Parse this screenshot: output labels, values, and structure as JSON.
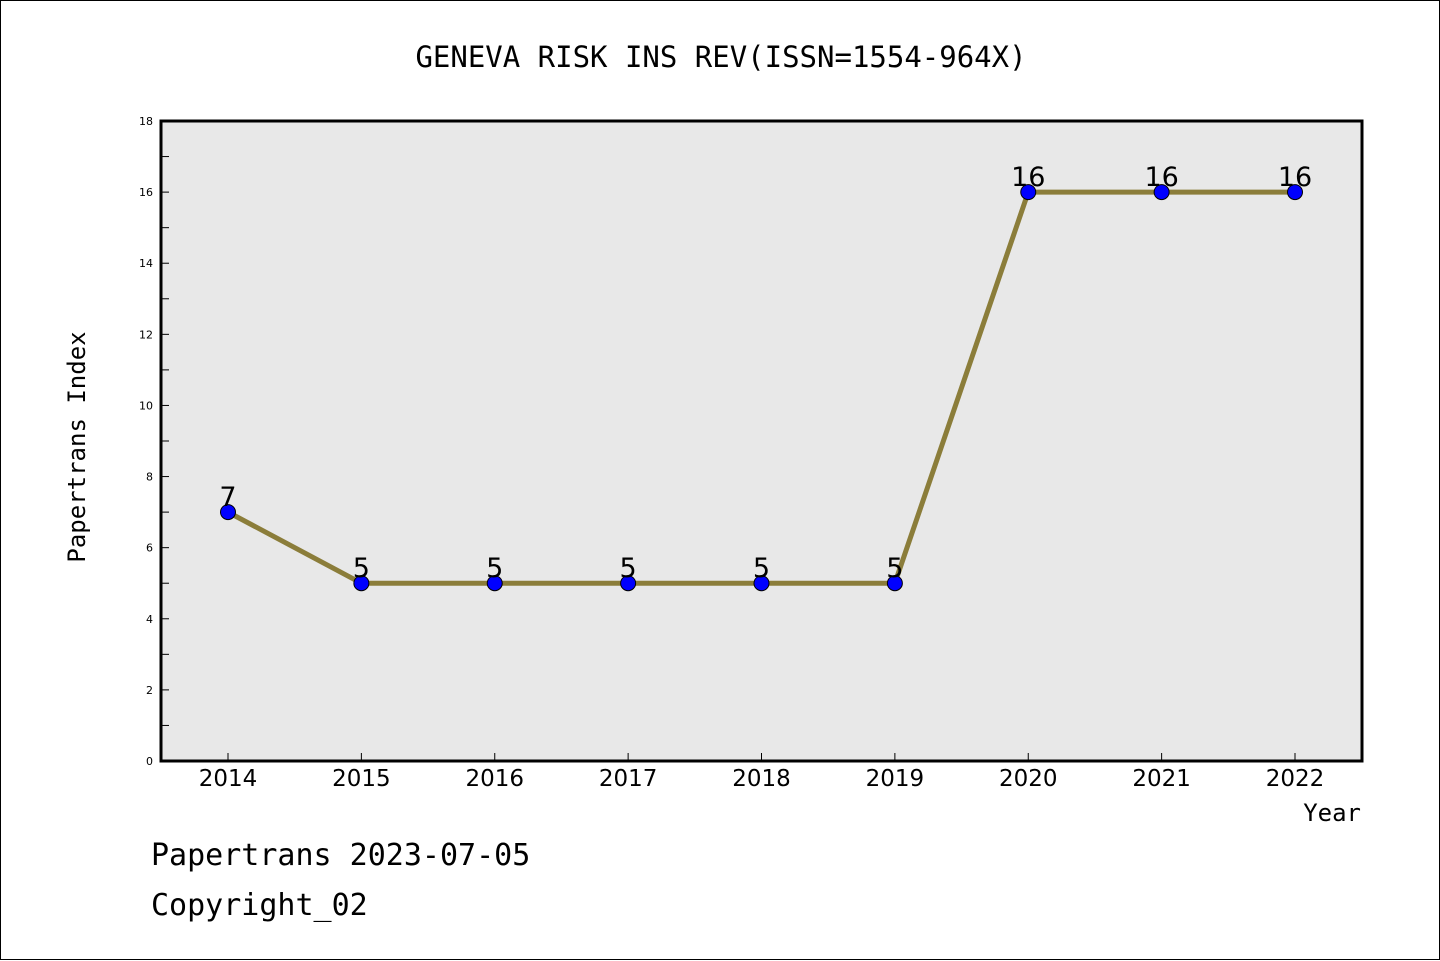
{
  "chart_data": {
    "type": "line",
    "title": "GENEVA RISK INS REV(ISSN=1554-964X)",
    "xlabel": "Year",
    "ylabel": "Papertrans Index",
    "x": [
      "2014",
      "2015",
      "2016",
      "2017",
      "2018",
      "2019",
      "2020",
      "2021",
      "2022"
    ],
    "series": [
      {
        "values": [
          7,
          5,
          5,
          5,
          5,
          5,
          16,
          16,
          16
        ]
      }
    ],
    "ylim": [
      0,
      18
    ],
    "yticks": [
      "0",
      "2",
      "4",
      "6",
      "8",
      "10",
      "12",
      "14",
      "16",
      "18"
    ],
    "grid": false,
    "line_color": "#8b7d3a",
    "marker_color": "#0000ff",
    "plot_background": "#e8e8e8"
  },
  "footer": {
    "line1": "Papertrans 2023-07-05",
    "line2": "Copyright_02"
  }
}
